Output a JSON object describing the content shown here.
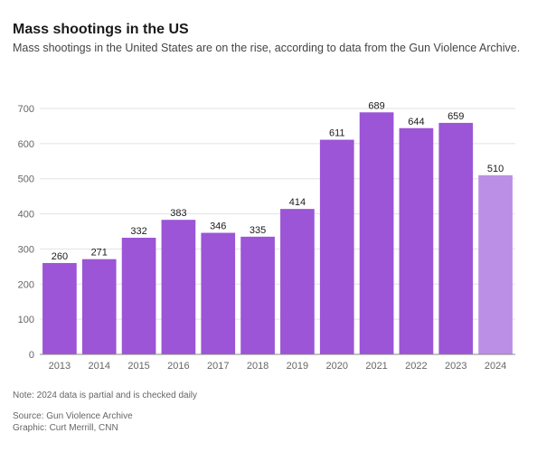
{
  "header": {
    "title": "Mass shootings in the US",
    "subtitle": "Mass shootings in the United States are on the rise, according to data from the Gun Violence Archive."
  },
  "chart_data": {
    "type": "bar",
    "categories": [
      "2013",
      "2014",
      "2015",
      "2016",
      "2017",
      "2018",
      "2019",
      "2020",
      "2021",
      "2022",
      "2023",
      "2024"
    ],
    "values": [
      260,
      271,
      332,
      383,
      346,
      335,
      414,
      611,
      689,
      644,
      659,
      510
    ],
    "data_labels": [
      "260",
      "271",
      "332",
      "383",
      "346",
      "335",
      "414",
      "611",
      "689",
      "644",
      "659",
      "510"
    ],
    "partial_category": "2024",
    "ylim": [
      0,
      700
    ],
    "yticks": [
      0,
      100,
      200,
      300,
      400,
      500,
      600,
      700
    ],
    "ytick_labels": [
      "0",
      "100",
      "200",
      "300",
      "400",
      "500",
      "600",
      "700"
    ],
    "grid": true,
    "legend": "none",
    "colors": {
      "bar": "#9b55d6",
      "partial_bar": "#bb8fe6",
      "grid": "#e2e2e2",
      "axis": "#888888"
    }
  },
  "footer": {
    "note": "Note: 2024 data is partial and is checked daily",
    "source": "Source: Gun Violence Archive",
    "credit": "Graphic: Curt Merrill, CNN"
  }
}
